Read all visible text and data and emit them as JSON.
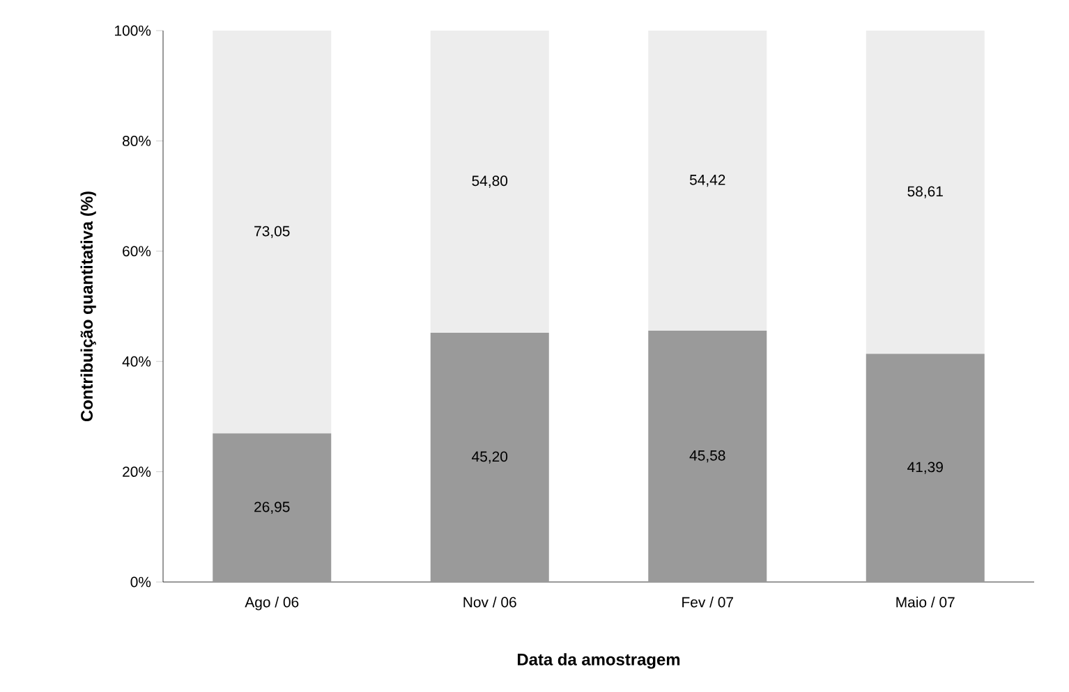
{
  "chart_data": {
    "type": "bar",
    "stacked": true,
    "xlabel": "Data da amostragem",
    "ylabel": "Contribuição  quantitativa (%)",
    "categories": [
      "Ago / 06",
      "Nov / 06",
      "Fev / 07",
      "Maio / 07"
    ],
    "series": [
      {
        "color": "#9a9a9a",
        "values": [
          26.95,
          45.2,
          45.58,
          41.39
        ],
        "value_labels": [
          "26,95",
          "45,20",
          "45,58",
          "41,39"
        ]
      },
      {
        "color": "#ededed",
        "values": [
          73.05,
          54.8,
          54.42,
          58.61
        ],
        "value_labels": [
          "73,05",
          "54,80",
          "54,42",
          "58,61"
        ]
      }
    ],
    "ylim": [
      0,
      100
    ],
    "yticks": [
      {
        "value": 0,
        "label": "0%"
      },
      {
        "value": 20,
        "label": "20%"
      },
      {
        "value": 40,
        "label": "40%"
      },
      {
        "value": 60,
        "label": "60%"
      },
      {
        "value": 80,
        "label": "80%"
      },
      {
        "value": 100,
        "label": "100%"
      }
    ],
    "grid": false
  }
}
